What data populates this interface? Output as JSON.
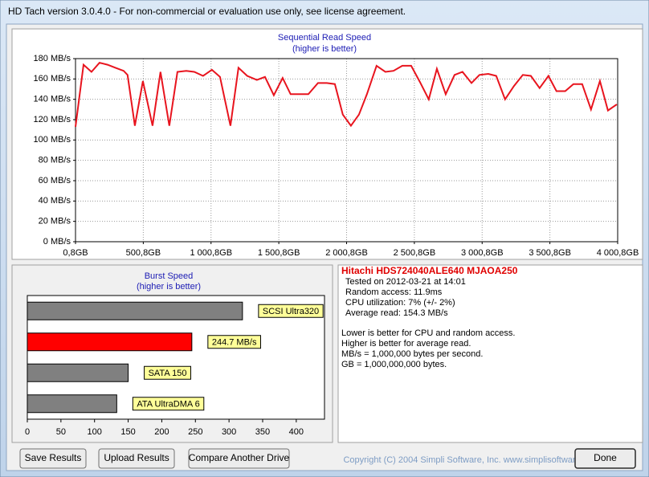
{
  "window_title": "HD Tach version 3.0.4.0  - For non-commercial or evaluation use only, see license agreement.",
  "chart_data": [
    {
      "type": "line",
      "title": "Sequential Read Speed",
      "subtitle": "(higher is better)",
      "color": "#e8141e",
      "grid": true,
      "x": [
        1,
        60,
        119,
        178,
        237,
        296,
        356,
        385,
        439,
        498,
        569,
        628,
        693,
        753,
        818,
        877,
        942,
        1007,
        1067,
        1144,
        1203,
        1268,
        1339,
        1399,
        1464,
        1529,
        1588,
        1659,
        1719,
        1790,
        1855,
        1914,
        1973,
        2033,
        2092,
        2151,
        2222,
        2287,
        2347,
        2412,
        2477,
        2542,
        2607,
        2667,
        2732,
        2797,
        2856,
        2922,
        2981,
        3046,
        3105,
        3170,
        3235,
        3301,
        3360,
        3425,
        3490,
        3549,
        3614,
        3674,
        3739,
        3804,
        3870,
        3929,
        3994
      ],
      "values": [
        113,
        174,
        167,
        176,
        174,
        171,
        168,
        164,
        114,
        158,
        114,
        167,
        114,
        167,
        168,
        167,
        163,
        169,
        162,
        114,
        171,
        163,
        159,
        162,
        144,
        161,
        145,
        145,
        145,
        156,
        156,
        155,
        125,
        114,
        125,
        145,
        173,
        167,
        168,
        173,
        173,
        157,
        140,
        170,
        145,
        164,
        167,
        156,
        164,
        165,
        163,
        140,
        153,
        164,
        163,
        151,
        163,
        148,
        148,
        155,
        155,
        130,
        158,
        129,
        135
      ],
      "xlim": [
        0.8,
        4000.8
      ],
      "xticks": [
        {
          "value": 0.8,
          "label": "0,8GB"
        },
        {
          "value": 500.8,
          "label": "500,8GB"
        },
        {
          "value": 1000.8,
          "label": "1 000,8GB"
        },
        {
          "value": 1500.8,
          "label": "1 500,8GB"
        },
        {
          "value": 2000.8,
          "label": "2 000,8GB"
        },
        {
          "value": 2500.8,
          "label": "2 500,8GB"
        },
        {
          "value": 3000.8,
          "label": "3 000,8GB"
        },
        {
          "value": 3500.8,
          "label": "3 500,8GB"
        },
        {
          "value": 4000.8,
          "label": "4 000,8GB"
        }
      ],
      "ylim": [
        0,
        180
      ],
      "yticks": [
        {
          "value": 0,
          "label": "0 MB/s"
        },
        {
          "value": 20,
          "label": "20 MB/s"
        },
        {
          "value": 40,
          "label": "40 MB/s"
        },
        {
          "value": 60,
          "label": "60 MB/s"
        },
        {
          "value": 80,
          "label": "80 MB/s"
        },
        {
          "value": 100,
          "label": "100 MB/s"
        },
        {
          "value": 120,
          "label": "120 MB/s"
        },
        {
          "value": 140,
          "label": "140 MB/s"
        },
        {
          "value": 160,
          "label": "160 MB/s"
        },
        {
          "value": 180,
          "label": "180 MB/s"
        }
      ]
    },
    {
      "type": "hbar",
      "title": "Burst Speed",
      "subtitle": "(higher is better)",
      "categories": [
        "SCSI Ultra320",
        null,
        "SATA 150",
        "ATA UltraDMA 6"
      ],
      "values": [
        320,
        244.7,
        150,
        133
      ],
      "value_labels": [
        null,
        "244.7 MB/s",
        null,
        null
      ],
      "colors": [
        "#808080",
        "#ff0000",
        "#808080",
        "#808080"
      ],
      "xlim": [
        0,
        442
      ],
      "xticks": [
        0,
        50,
        100,
        150,
        200,
        250,
        300,
        350,
        400
      ]
    }
  ],
  "info": {
    "drive": "Hitachi HDS724040ALE640 MJAOA250",
    "results": [
      "Tested on 2012-03-21 at 14:01",
      "Random access: 11.9ms",
      "CPU utilization: 7% (+/- 2%)",
      "Average read: 154.3 MB/s"
    ],
    "notes": [
      "Lower is better for CPU and random access.",
      "Higher is better for average read.",
      "MB/s = 1,000,000 bytes per second.",
      "GB = 1,000,000,000 bytes."
    ]
  },
  "buttons": [
    "Save Results",
    "Upload Results",
    "Compare Another Drive",
    "Done"
  ],
  "copyright": "Copyright (C) 2004 Simpli Software, Inc. www.simplisoftware.com"
}
